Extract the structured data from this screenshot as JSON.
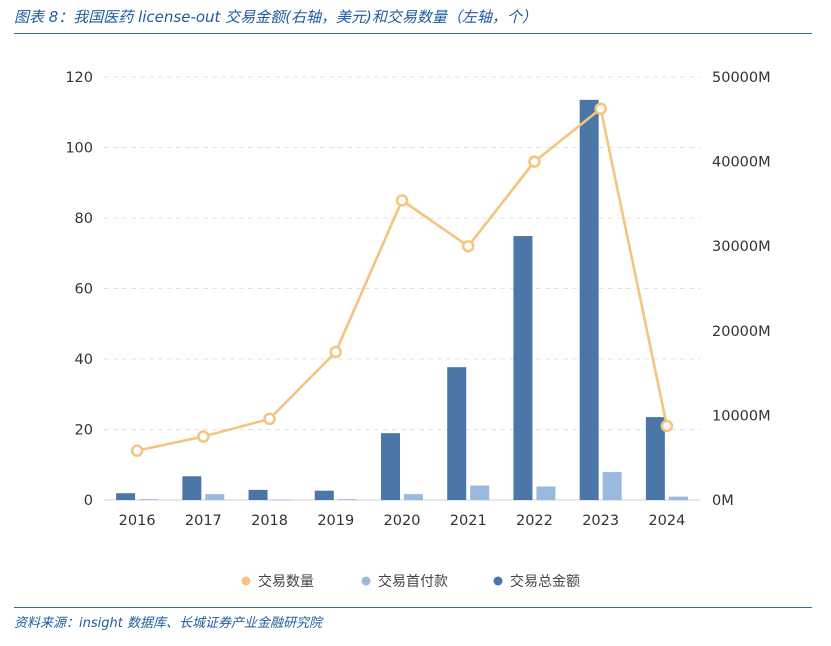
{
  "header": {
    "title": "图表 8：我国医药 license-out 交易金额(右轴，美元)和交易数量（左轴，个）"
  },
  "footer": {
    "source": "资料来源：insight 数据库、长城证券产业金融研究院"
  },
  "colors": {
    "count_line": "#f5c47e",
    "upfront_bar": "#9ab9de",
    "total_bar": "#4a77a8",
    "grid": "#e3e3e3",
    "rule": "#2e6aa8"
  },
  "chart_data": {
    "type": "bar",
    "categories": [
      "2016",
      "2017",
      "2018",
      "2019",
      "2020",
      "2021",
      "2022",
      "2023",
      "2024"
    ],
    "series": [
      {
        "name": "交易数量",
        "type": "line",
        "axis": "left",
        "values": [
          14,
          18,
          23,
          42,
          85,
          72,
          96,
          111,
          21
        ]
      },
      {
        "name": "交易首付款",
        "type": "bar",
        "axis": "right",
        "unit": "M",
        "values": [
          100,
          700,
          50,
          100,
          700,
          1700,
          1600,
          3300,
          400
        ]
      },
      {
        "name": "交易总金额",
        "type": "bar",
        "axis": "right",
        "unit": "M",
        "values": [
          800,
          2800,
          1200,
          1100,
          7900,
          15700,
          31200,
          47300,
          9800
        ]
      }
    ],
    "y_left": {
      "min": 0,
      "max": 120,
      "ticks": [
        "0",
        "20",
        "40",
        "60",
        "80",
        "100",
        "120"
      ]
    },
    "y_right": {
      "min": 0,
      "max": 50000,
      "ticks": [
        "0M",
        "10000M",
        "20000M",
        "30000M",
        "40000M",
        "50000M"
      ]
    },
    "grid": true,
    "legend_position": "bottom"
  }
}
